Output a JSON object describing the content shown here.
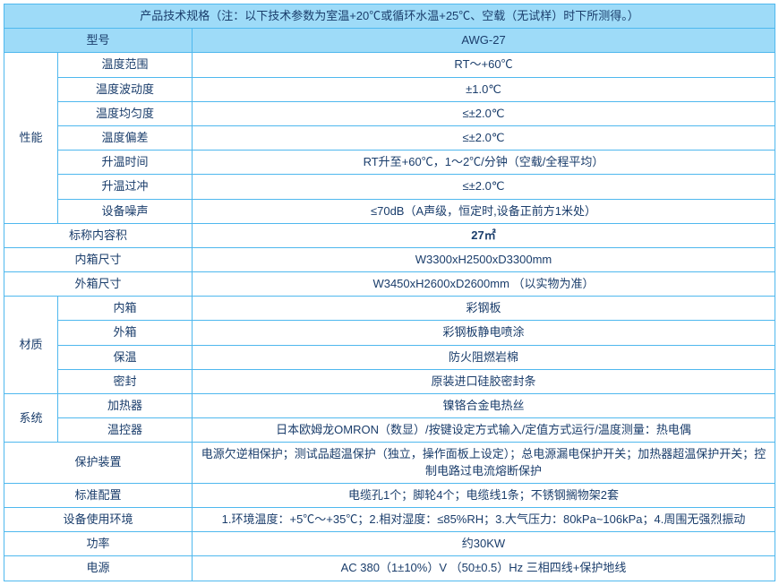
{
  "header_note": "产品技术规格（注：以下技术参数为室温+20℃或循环水温+25℃、空载（无试样）时下所测得。）",
  "model_label": "型号",
  "model_value": "AWG-27",
  "perf": {
    "group_label": "性能",
    "temp_range_label": "温度范围",
    "temp_range_value": "RT～+60℃",
    "fluctuation_label": "温度波动度",
    "fluctuation_value": "±1.0℃",
    "uniformity_label": "温度均匀度",
    "uniformity_value": "≤±2.0℃",
    "deviation_label": "温度偏差",
    "deviation_value": "≤±2.0℃",
    "heatup_time_label": "升温时间",
    "heatup_time_value": "RT升至+60℃，1～2℃/分钟（空载/全程平均）",
    "overshoot_label": "升温过冲",
    "overshoot_value": "≤±2.0℃",
    "noise_label": "设备噪声",
    "noise_value": "≤70dB（A声级，恒定时,设备正前方1米处）"
  },
  "nominal_volume_label": "标称内容积",
  "nominal_volume_value": "27㎡",
  "inner_dim_label": "内箱尺寸",
  "inner_dim_value": "W3300xH2500xD3300mm",
  "outer_dim_label": "外箱尺寸",
  "outer_dim_value": "W3450xH2600xD2600mm （以实物为准）",
  "material": {
    "group_label": "材质",
    "inner_label": "内箱",
    "inner_value": "彩钢板",
    "outer_label": "外箱",
    "outer_value": "彩钢板静电喷涂",
    "insulation_label": "保温",
    "insulation_value": "防火阻燃岩棉",
    "seal_label": "密封",
    "seal_value": "原装进口硅胶密封条"
  },
  "system": {
    "group_label": "系统",
    "heater_label": "加热器",
    "heater_value": "镍铬合金电热丝",
    "controller_label": "温控器",
    "controller_value": "日本欧姆龙OMRON（数显）/按键设定方式输入/定值方式运行/温度测量：热电偶"
  },
  "protection_label": "保护装置",
  "protection_value": "电源欠逆相保护；测试品超温保护（独立，操作面板上设定）；总电源漏电保护开关；加热器超温保护开关；控制电路过电流熔断保护",
  "standard_config_label": "标准配置",
  "standard_config_value": "电缆孔1个；脚轮4个；电缆线1条；不锈钢搁物架2套",
  "environment_label": "设备使用环境",
  "environment_value": "1.环境温度：+5℃～+35℃；2.相对湿度：≤85%RH；3.大气压力：80kPa~106kPa；4.周围无强烈振动",
  "power_label": "功率",
  "power_value": "约30KW",
  "supply_label": "电源",
  "supply_value": "AC 380（1±10%）V （50±0.5）Hz 三相四线+保护地线"
}
